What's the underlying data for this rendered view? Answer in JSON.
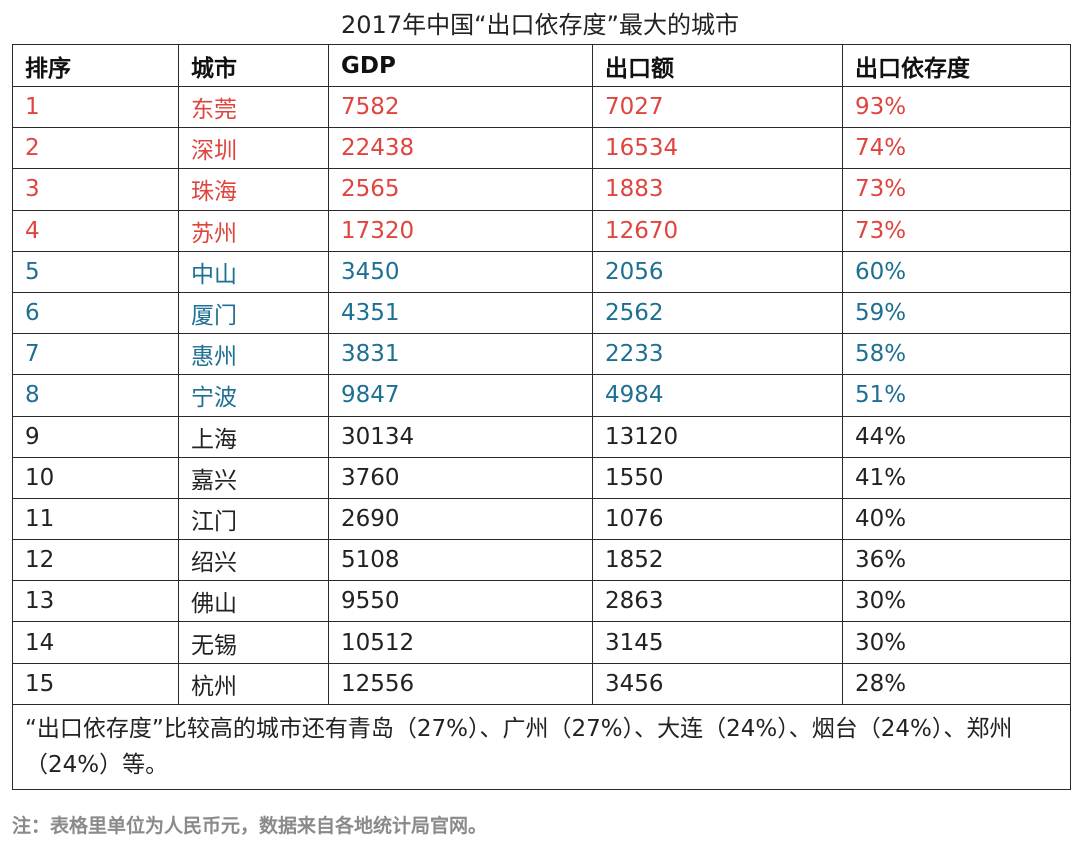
{
  "title": "2017年中国“出口依存度”最大的城市",
  "table": {
    "headers": [
      "排序",
      "城市",
      "GDP",
      "出口额",
      "出口依存度"
    ],
    "rows": [
      {
        "rank": "1",
        "city": "东莞",
        "gdp": "7582",
        "export": "7027",
        "ratio": "93%",
        "tone": "red"
      },
      {
        "rank": "2",
        "city": "深圳",
        "gdp": "22438",
        "export": "16534",
        "ratio": "74%",
        "tone": "red"
      },
      {
        "rank": "3",
        "city": "珠海",
        "gdp": "2565",
        "export": "1883",
        "ratio": "73%",
        "tone": "red"
      },
      {
        "rank": "4",
        "city": "苏州",
        "gdp": "17320",
        "export": "12670",
        "ratio": "73%",
        "tone": "red"
      },
      {
        "rank": "5",
        "city": "中山",
        "gdp": "3450",
        "export": "2056",
        "ratio": "60%",
        "tone": "blue"
      },
      {
        "rank": "6",
        "city": "厦门",
        "gdp": "4351",
        "export": "2562",
        "ratio": "59%",
        "tone": "blue"
      },
      {
        "rank": "7",
        "city": "惠州",
        "gdp": "3831",
        "export": "2233",
        "ratio": "58%",
        "tone": "blue"
      },
      {
        "rank": "8",
        "city": "宁波",
        "gdp": "9847",
        "export": "4984",
        "ratio": "51%",
        "tone": "blue"
      },
      {
        "rank": "9",
        "city": "上海",
        "gdp": "30134",
        "export": "13120",
        "ratio": "44%",
        "tone": "plain"
      },
      {
        "rank": "10",
        "city": "嘉兴",
        "gdp": "3760",
        "export": "1550",
        "ratio": "41%",
        "tone": "plain"
      },
      {
        "rank": "11",
        "city": "江门",
        "gdp": "2690",
        "export": "1076",
        "ratio": "40%",
        "tone": "plain"
      },
      {
        "rank": "12",
        "city": "绍兴",
        "gdp": "5108",
        "export": "1852",
        "ratio": "36%",
        "tone": "plain"
      },
      {
        "rank": "13",
        "city": "佛山",
        "gdp": "9550",
        "export": "2863",
        "ratio": "30%",
        "tone": "plain"
      },
      {
        "rank": "14",
        "city": "无锡",
        "gdp": "10512",
        "export": "3145",
        "ratio": "30%",
        "tone": "plain"
      },
      {
        "rank": "15",
        "city": "杭州",
        "gdp": "12556",
        "export": "3456",
        "ratio": "28%",
        "tone": "plain"
      }
    ],
    "note": "“出口依存度”比较高的城市还有青岛（27%）、广州（27%）、大连（24%）、烟台（24%）、郑州（24%）等。"
  },
  "footnote": "注：表格里单位为人民币元，数据来自各地统计局官网。",
  "colors": {
    "red": "#e0443e",
    "blue": "#1d6f93",
    "plain": "#222222"
  }
}
